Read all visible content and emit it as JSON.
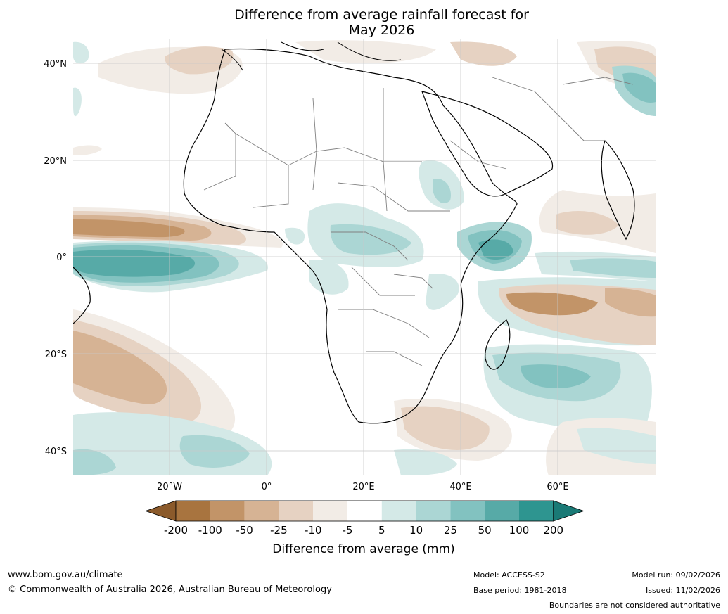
{
  "title_line1": "Difference from average rainfall forecast for",
  "title_line2": "May 2026",
  "lat_labels": [
    "40°N",
    "20°N",
    "0°",
    "20°S",
    "40°S"
  ],
  "lon_labels": [
    "20°W",
    "0°",
    "20°E",
    "40°E",
    "60°E"
  ],
  "colorbar": {
    "title": "Difference from average (mm)",
    "ticks": [
      "-200",
      "-100",
      "-50",
      "-25",
      "-10",
      "-5",
      "5",
      "10",
      "25",
      "50",
      "100",
      "200"
    ],
    "colors": [
      "#8b5a2b",
      "#a8743f",
      "#c29468",
      "#d6b394",
      "#e6d2c2",
      "#f2ece6",
      "#ffffff",
      "#d4e9e7",
      "#abd6d4",
      "#82c2c0",
      "#57aaa7",
      "#2e9590",
      "#1a7a76"
    ]
  },
  "footer": {
    "website": "www.bom.gov.au/climate",
    "copyright": "© Commonwealth of Australia 2026, Australian Bureau of Meteorology",
    "model": "Model: ACCESS-S2",
    "base_period": "Base period: 1981-2018",
    "model_run": "Model run: 09/02/2026",
    "issued": "Issued: 11/02/2026",
    "boundaries_note": "Boundaries are not considered authoritative"
  },
  "colors": {
    "grid": "#c8c8c8",
    "coast": "#000000",
    "border": "#808080"
  }
}
